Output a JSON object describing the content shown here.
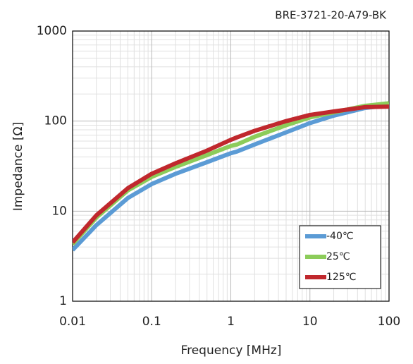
{
  "chart_data": {
    "type": "line",
    "subtitle": "BRE-3721-20-A79-BK",
    "x_label": "Frequency [MHz]",
    "y_label": "Impedance [Ω]",
    "x": [
      0.01,
      0.02,
      0.05,
      0.1,
      0.2,
      0.5,
      1,
      1.2,
      2,
      5,
      10,
      20,
      50,
      100
    ],
    "series": [
      {
        "name": "-40℃",
        "color": "#5b9bd5",
        "values": [
          3.7,
          7,
          14,
          20,
          26,
          35,
          44,
          46,
          55,
          75,
          95,
          115,
          140,
          150
        ]
      },
      {
        "name": "25℃",
        "color": "#8ccc5a",
        "values": [
          4.3,
          8.5,
          17,
          24,
          31,
          42,
          53,
          55,
          67,
          90,
          110,
          125,
          148,
          158
        ]
      },
      {
        "name": "125℃",
        "color": "#c0282d",
        "values": [
          4.5,
          9,
          18,
          26,
          34,
          47,
          62,
          66,
          78,
          100,
          117,
          128,
          143,
          145
        ]
      }
    ],
    "xlim": [
      0.01,
      100
    ],
    "ylim": [
      1,
      1000
    ],
    "xticks": [
      0.01,
      0.1,
      1,
      10,
      100
    ],
    "yticks": [
      1,
      10,
      100,
      1000
    ],
    "xlog": true,
    "ylog": true,
    "grid": true,
    "minor_grid": true,
    "legend": "lower right"
  }
}
